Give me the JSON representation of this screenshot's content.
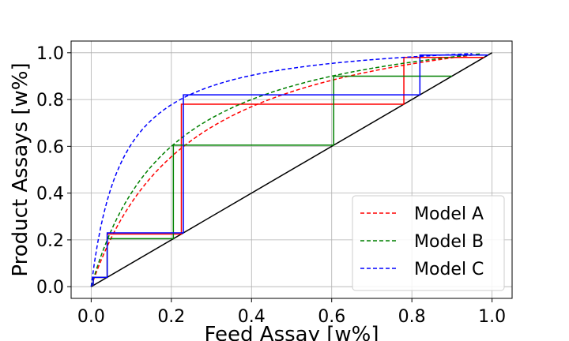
{
  "chart_data": {
    "type": "line",
    "title": "",
    "xlabel": "Feed Assay [w%]",
    "ylabel": "Product Assays [w%]",
    "xlim": [
      -0.05,
      1.05
    ],
    "ylim": [
      -0.05,
      1.05
    ],
    "xticks": [
      "0.0",
      "0.2",
      "0.4",
      "0.6",
      "0.8",
      "1.0"
    ],
    "yticks": [
      "0.0",
      "0.2",
      "0.4",
      "0.6",
      "0.8",
      "1.0"
    ],
    "xtick_values": [
      0.0,
      0.2,
      0.4,
      0.6,
      0.8,
      1.0
    ],
    "ytick_values": [
      0.0,
      0.2,
      0.4,
      0.6,
      0.8,
      1.0
    ],
    "grid": true,
    "legend_position": "lower-right",
    "diagonal": {
      "color": "#000000",
      "points": [
        [
          0,
          0
        ],
        [
          1,
          1
        ]
      ]
    },
    "series": [
      {
        "name": "Model A",
        "color": "#ff0000",
        "style": "dashed",
        "alpha": 5.0,
        "x_max": 0.97,
        "steps": [
          [
            0.005,
            0.005
          ],
          [
            0.005,
            0.04
          ],
          [
            0.04,
            0.04
          ],
          [
            0.04,
            0.225
          ],
          [
            0.225,
            0.225
          ],
          [
            0.225,
            0.78
          ],
          [
            0.78,
            0.78
          ],
          [
            0.78,
            0.98
          ],
          [
            0.98,
            0.98
          ]
        ]
      },
      {
        "name": "Model B",
        "color": "#008000",
        "style": "dashed",
        "alpha": 6.0,
        "x_max": 0.97,
        "steps": [
          [
            0.005,
            0.005
          ],
          [
            0.005,
            0.04
          ],
          [
            0.04,
            0.04
          ],
          [
            0.04,
            0.205
          ],
          [
            0.205,
            0.205
          ],
          [
            0.205,
            0.605
          ],
          [
            0.605,
            0.605
          ],
          [
            0.605,
            0.9
          ],
          [
            0.9,
            0.9
          ]
        ]
      },
      {
        "name": "Model C",
        "color": "#0000ff",
        "style": "dashed",
        "alpha": 14.0,
        "x_max": 0.95,
        "steps": [
          [
            0.005,
            0.005
          ],
          [
            0.005,
            0.04
          ],
          [
            0.04,
            0.04
          ],
          [
            0.04,
            0.23
          ],
          [
            0.23,
            0.23
          ],
          [
            0.23,
            0.82
          ],
          [
            0.82,
            0.82
          ],
          [
            0.82,
            0.99
          ],
          [
            0.99,
            0.99
          ]
        ]
      }
    ]
  }
}
